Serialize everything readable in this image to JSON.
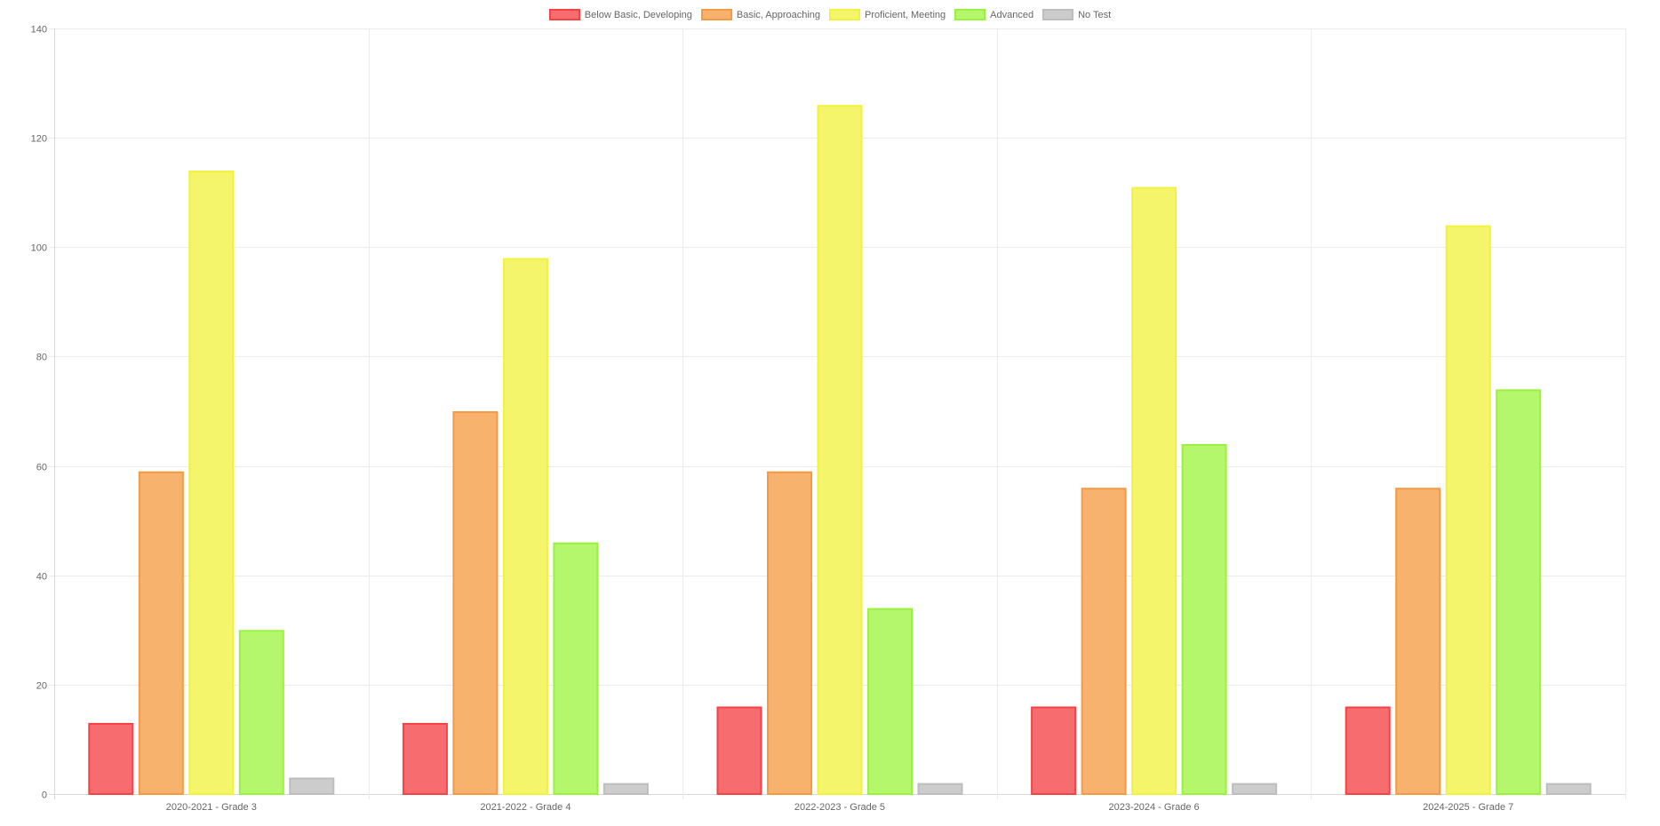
{
  "chart_data": {
    "type": "bar",
    "title": "",
    "xlabel": "",
    "ylabel": "",
    "ylim": [
      0,
      140
    ],
    "yticks": [
      0,
      20,
      40,
      60,
      80,
      100,
      120,
      140
    ],
    "grid": true,
    "legend_position": "top",
    "categories": [
      "2020-2021 - Grade 3",
      "2021-2022 - Grade 4",
      "2022-2023 - Grade 5",
      "2023-2024 - Grade 6",
      "2024-2025 - Grade 7"
    ],
    "series": [
      {
        "name": "Below Basic, Developing",
        "values": [
          13,
          13,
          16,
          16,
          16
        ],
        "fill": "#f76d6f",
        "border": "#f54245"
      },
      {
        "name": "Basic, Approaching",
        "values": [
          59,
          70,
          59,
          56,
          56
        ],
        "fill": "#f7b26d",
        "border": "#f59a42"
      },
      {
        "name": "Proficient, Meeting",
        "values": [
          114,
          98,
          126,
          111,
          104
        ],
        "fill": "#f4f56a",
        "border": "#f2f23c"
      },
      {
        "name": "Advanced",
        "values": [
          30,
          46,
          34,
          64,
          74
        ],
        "fill": "#b4f76d",
        "border": "#99f23c"
      },
      {
        "name": "No Test",
        "values": [
          3,
          2,
          2,
          2,
          2
        ],
        "fill": "#cccccc",
        "border": "#bdbdbd"
      }
    ]
  }
}
